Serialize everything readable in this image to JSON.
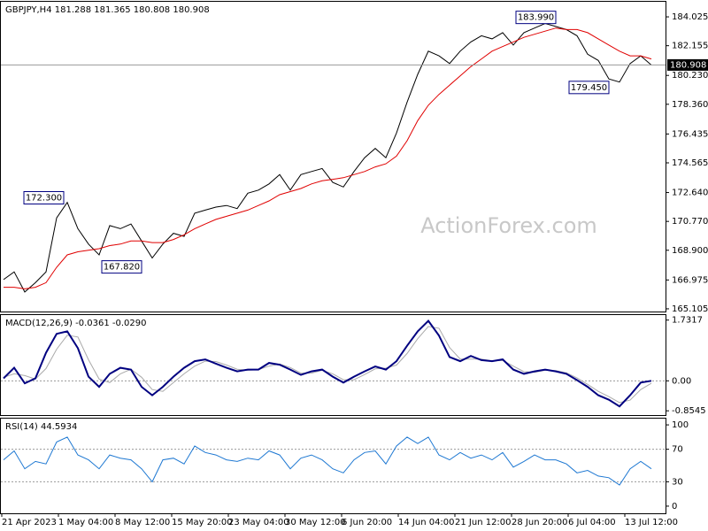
{
  "chart_data": [
    {
      "type": "line",
      "title": "GBPJPY,H4  181.288 181.365 180.808 180.908",
      "watermark": "ActionForex.com",
      "x": [
        1,
        4,
        7,
        10,
        13,
        16,
        19,
        22,
        25,
        28,
        31,
        34,
        37,
        40,
        43,
        46,
        49,
        52,
        55,
        58,
        61,
        64,
        67,
        70,
        73,
        76,
        79,
        82,
        85,
        88,
        91,
        94,
        97,
        100,
        103,
        106,
        109,
        112,
        115,
        118,
        121,
        124,
        127,
        130,
        133,
        136,
        139,
        142,
        145,
        148,
        151,
        154,
        157,
        160,
        163,
        166,
        169,
        172,
        175,
        178,
        181,
        184
      ],
      "xlim": [
        0,
        188
      ],
      "ylim": [
        164.93,
        185.06
      ],
      "yticks": [
        184.025,
        182.155,
        {
          "value": 180.23,
          "label": "180.230"
        },
        {
          "value": 178.36,
          "label": "178.360"
        },
        176.435,
        174.565,
        {
          "value": 172.64,
          "label": "172.640"
        },
        {
          "value": 170.77,
          "label": "170.770"
        },
        {
          "value": 168.9,
          "label": "168.900"
        },
        166.975,
        165.105
      ],
      "last_price": 180.908,
      "series": [
        {
          "color": "#000000",
          "values": [
            167.0,
            167.5,
            166.2,
            166.8,
            167.5,
            171.0,
            172.0,
            170.3,
            169.3,
            168.6,
            170.5,
            170.3,
            170.6,
            169.5,
            168.4,
            169.3,
            170.0,
            169.8,
            171.3,
            171.5,
            171.7,
            171.8,
            171.6,
            172.6,
            172.8,
            173.2,
            173.8,
            172.8,
            173.8,
            174.0,
            174.2,
            173.3,
            173.0,
            174.0,
            174.9,
            175.5,
            174.9,
            176.5,
            178.5,
            180.3,
            181.8,
            181.5,
            181.0,
            181.8,
            182.4,
            182.8,
            182.6,
            183.0,
            182.2,
            183.0,
            183.3,
            183.6,
            183.4,
            183.2,
            182.8,
            181.6,
            181.2,
            180.0,
            179.8,
            181.0,
            181.5,
            180.9
          ]
        },
        {
          "color": "#e00000",
          "values": [
            166.5,
            166.5,
            166.4,
            166.5,
            166.8,
            167.8,
            168.6,
            168.8,
            168.9,
            169.0,
            169.2,
            169.3,
            169.5,
            169.5,
            169.4,
            169.4,
            169.6,
            169.9,
            170.3,
            170.6,
            170.9,
            171.1,
            171.3,
            171.5,
            171.8,
            172.1,
            172.5,
            172.7,
            172.9,
            173.2,
            173.4,
            173.5,
            173.6,
            173.8,
            174.0,
            174.3,
            174.5,
            175.0,
            176.0,
            177.3,
            178.3,
            179.0,
            179.6,
            180.2,
            180.8,
            181.3,
            181.8,
            182.1,
            182.4,
            182.7,
            182.9,
            183.1,
            183.3,
            183.2,
            183.2,
            183.0,
            182.6,
            182.2,
            181.8,
            181.5,
            181.5,
            181.3
          ]
        }
      ],
      "annotations": [
        {
          "x": 157,
          "value": 183.99,
          "label": "183.990"
        },
        {
          "x": 172,
          "value": 179.45,
          "label": "179.450"
        },
        {
          "x": 18,
          "value": 172.3,
          "label": "172.300"
        },
        {
          "x": 40,
          "value": 167.82,
          "label": "167.820"
        }
      ]
    },
    {
      "type": "line",
      "title": "MACD(12,26,9) -0.0361 -0.0290",
      "x": [
        1,
        4,
        7,
        10,
        13,
        16,
        19,
        22,
        25,
        28,
        31,
        34,
        37,
        40,
        43,
        46,
        49,
        52,
        55,
        58,
        61,
        64,
        67,
        70,
        73,
        76,
        79,
        82,
        85,
        88,
        91,
        94,
        97,
        100,
        103,
        106,
        109,
        112,
        115,
        118,
        121,
        124,
        127,
        130,
        133,
        136,
        139,
        142,
        145,
        148,
        151,
        154,
        157,
        160,
        163,
        166,
        169,
        172,
        175,
        178,
        181,
        184
      ],
      "xlim": [
        0,
        188
      ],
      "ylim": [
        -0.976,
        1.9
      ],
      "yticks": [
        1.7317,
        {
          "value": 0,
          "label": "0.00"
        },
        -0.8545
      ],
      "hlines": [
        0
      ],
      "series": [
        {
          "color": "#aaaaaa",
          "values": [
            0.1,
            0.2,
            0.15,
            0.05,
            0.35,
            0.9,
            1.3,
            1.25,
            0.6,
            0.05,
            -0.05,
            0.2,
            0.33,
            0.1,
            -0.25,
            -0.3,
            -0.05,
            0.2,
            0.42,
            0.56,
            0.55,
            0.45,
            0.33,
            0.3,
            0.32,
            0.42,
            0.48,
            0.38,
            0.22,
            0.22,
            0.3,
            0.2,
            0.03,
            0.03,
            0.18,
            0.34,
            0.36,
            0.45,
            0.78,
            1.2,
            1.55,
            1.5,
            0.95,
            0.62,
            0.62,
            0.62,
            0.57,
            0.58,
            0.42,
            0.26,
            0.24,
            0.3,
            0.29,
            0.23,
            0.08,
            -0.1,
            -0.3,
            -0.45,
            -0.62,
            -0.55,
            -0.25,
            -0.07
          ]
        },
        {
          "color": "#000080",
          "weight": "bold",
          "values": [
            0.07,
            0.37,
            -0.07,
            0.07,
            0.8,
            1.34,
            1.41,
            0.93,
            0.12,
            -0.17,
            0.2,
            0.37,
            0.32,
            -0.17,
            -0.41,
            -0.17,
            0.12,
            0.37,
            0.56,
            0.61,
            0.49,
            0.37,
            0.27,
            0.32,
            0.32,
            0.51,
            0.46,
            0.32,
            0.17,
            0.27,
            0.32,
            0.12,
            -0.05,
            0.12,
            0.27,
            0.41,
            0.32,
            0.56,
            1.0,
            1.41,
            1.71,
            1.29,
            0.68,
            0.56,
            0.71,
            0.59,
            0.56,
            0.61,
            0.32,
            0.2,
            0.27,
            0.32,
            0.27,
            0.2,
            0.02,
            -0.17,
            -0.41,
            -0.54,
            -0.73,
            -0.41,
            -0.05,
            0.0
          ]
        }
      ]
    },
    {
      "type": "line",
      "title": "RSI(14) 44.5934",
      "x": [
        1,
        4,
        7,
        10,
        13,
        16,
        19,
        22,
        25,
        28,
        31,
        34,
        37,
        40,
        43,
        46,
        49,
        52,
        55,
        58,
        61,
        64,
        67,
        70,
        73,
        76,
        79,
        82,
        85,
        88,
        91,
        94,
        97,
        100,
        103,
        106,
        109,
        112,
        115,
        118,
        121,
        124,
        127,
        130,
        133,
        136,
        139,
        142,
        145,
        148,
        151,
        154,
        157,
        160,
        163,
        166,
        169,
        172,
        175,
        178,
        181,
        184
      ],
      "xlim": [
        0,
        188
      ],
      "ylim": [
        -8.8,
        108.8
      ],
      "yticks": [
        100,
        70,
        30,
        0
      ],
      "hlines": [
        70,
        30
      ],
      "xticks": [
        {
          "value": 0.5,
          "label": "21 Apr 2023"
        },
        {
          "value": 16.5,
          "label": "1 May 04:00"
        },
        {
          "value": 32.5,
          "label": "8 May 12:00"
        },
        {
          "value": 48.5,
          "label": "15 May 20:00"
        },
        {
          "value": 64.5,
          "label": "23 May 04:00"
        },
        {
          "value": 80.5,
          "label": "30 May 12:00"
        },
        {
          "value": 96.5,
          "label": "6 Jun 20:00"
        },
        {
          "value": 112.5,
          "label": "14 Jun 04:00"
        },
        {
          "value": 128.5,
          "label": "21 Jun 12:00"
        },
        {
          "value": 144.5,
          "label": "28 Jun 20:00"
        },
        {
          "value": 160.5,
          "label": "6 Jul 04:00"
        },
        {
          "value": 176.5,
          "label": "13 Jul 12:00"
        }
      ],
      "series": [
        {
          "color": "#1e78d2",
          "values": [
            57,
            68,
            46,
            55,
            52,
            79,
            85,
            63,
            57,
            46,
            63,
            59,
            57,
            46,
            30,
            57,
            59,
            52,
            74,
            66,
            63,
            57,
            55,
            59,
            57,
            68,
            63,
            46,
            59,
            63,
            57,
            46,
            41,
            57,
            66,
            68,
            52,
            74,
            85,
            77,
            85,
            63,
            57,
            66,
            59,
            63,
            57,
            66,
            48,
            55,
            63,
            57,
            57,
            52,
            41,
            44,
            37,
            35,
            26,
            46,
            55,
            46
          ]
        }
      ]
    }
  ]
}
